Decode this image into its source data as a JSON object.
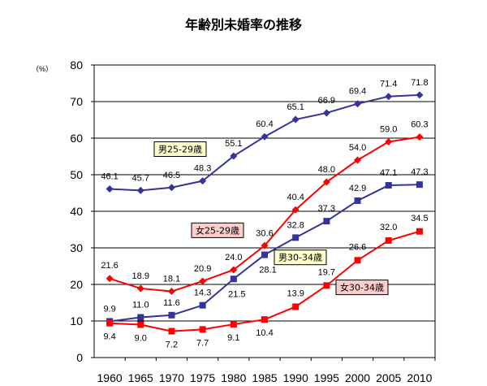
{
  "chart_data": {
    "type": "line",
    "title": "年齢別未婚率の推移",
    "unit_label": "（%）",
    "x": [
      1960,
      1965,
      1970,
      1975,
      1980,
      1985,
      1990,
      1995,
      2000,
      2005,
      2010
    ],
    "ylim": [
      0,
      80
    ],
    "yticks": [
      0,
      10,
      20,
      30,
      40,
      50,
      60,
      70,
      80
    ],
    "grid": true,
    "series": [
      {
        "name": "男25-29歳",
        "color": "#333399",
        "marker": "diamond",
        "values": [
          46.1,
          45.7,
          46.5,
          48.3,
          55.1,
          60.4,
          65.1,
          66.9,
          69.4,
          71.4,
          71.8
        ]
      },
      {
        "name": "女25-29歳",
        "color": "#ff0000",
        "marker": "diamond",
        "values": [
          21.6,
          18.9,
          18.1,
          20.9,
          24.0,
          30.6,
          40.4,
          48.0,
          54.0,
          59.0,
          60.3
        ]
      },
      {
        "name": "男30-34歳",
        "color": "#333399",
        "marker": "square",
        "values": [
          9.9,
          11.0,
          11.6,
          14.3,
          21.5,
          28.1,
          32.8,
          37.3,
          42.9,
          47.1,
          47.3
        ]
      },
      {
        "name": "女30-34歳",
        "color": "#ff0000",
        "marker": "square",
        "values": [
          9.4,
          9.0,
          7.2,
          7.7,
          9.1,
          10.4,
          13.9,
          19.7,
          26.6,
          32.0,
          34.5
        ]
      }
    ]
  }
}
